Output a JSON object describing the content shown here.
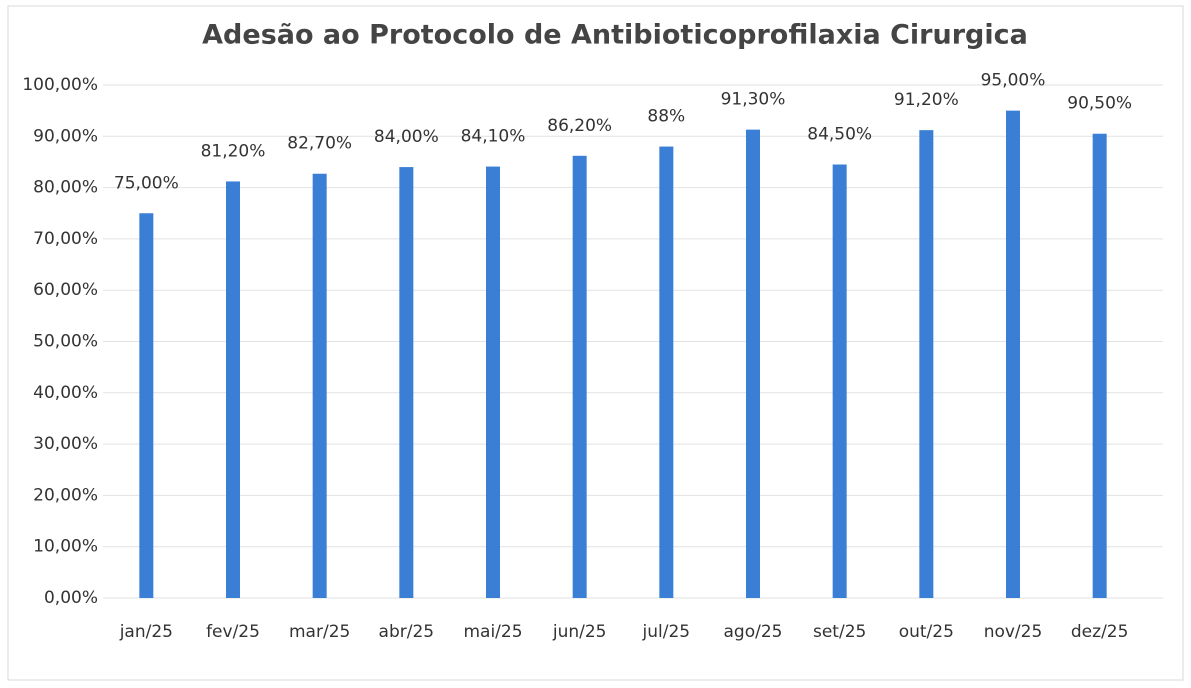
{
  "chart_data": {
    "type": "bar",
    "title": "Adesão ao Protocolo de Antibioticoprofilaxia Cirurgica",
    "categories": [
      "jan/25",
      "fev/25",
      "mar/25",
      "abr/25",
      "mai/25",
      "jun/25",
      "jul/25",
      "ago/25",
      "set/25",
      "out/25",
      "nov/25",
      "dez/25"
    ],
    "values": [
      75,
      81.2,
      82.7,
      84,
      84.1,
      86.2,
      88,
      91.3,
      84.5,
      91.2,
      95,
      90.5
    ],
    "value_labels": [
      "75,00%",
      "81,20%",
      "82,70%",
      "84,00%",
      "84,10%",
      "86,20%",
      "88%",
      "91,30%",
      "84,50%",
      "91,20%",
      "95,00%",
      "90,50%"
    ],
    "color": "#3a7fd5",
    "ylim": [
      0,
      100
    ],
    "yticks": [
      {
        "value": 0,
        "label": "0,00%"
      },
      {
        "value": 10,
        "label": "10,00%"
      },
      {
        "value": 20,
        "label": "20,00%"
      },
      {
        "value": 30,
        "label": "30,00%"
      },
      {
        "value": 40,
        "label": "40,00%"
      },
      {
        "value": 50,
        "label": "50,00%"
      },
      {
        "value": 60,
        "label": "60,00%"
      },
      {
        "value": 70,
        "label": "70,00%"
      },
      {
        "value": 80,
        "label": "80,00%"
      },
      {
        "value": 90,
        "label": "90,00%"
      },
      {
        "value": 100,
        "label": "100,00%"
      }
    ],
    "grid": true
  }
}
